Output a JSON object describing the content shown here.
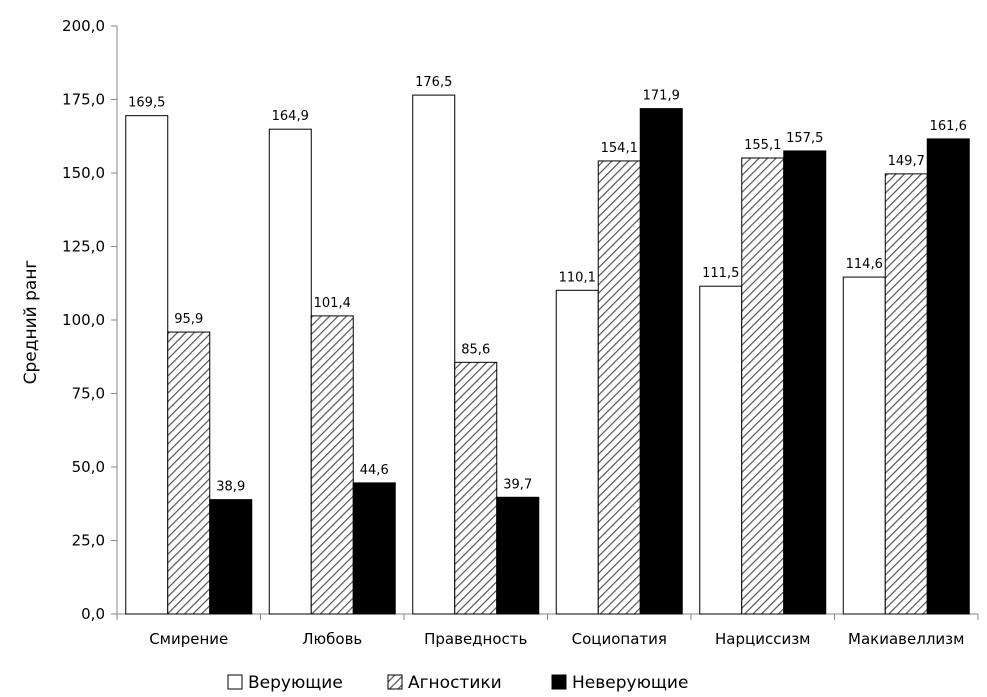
{
  "chart_data": {
    "type": "bar",
    "categories": [
      "Смирение",
      "Любовь",
      "Праведность",
      "Социопатия",
      "Нарциссизм",
      "Макиавеллизм"
    ],
    "series": [
      {
        "name": "Верующие",
        "values": [
          169.5,
          164.9,
          176.5,
          110.1,
          111.5,
          114.6
        ],
        "labels": [
          "169,5",
          "164,9",
          "176,5",
          "110,1",
          "111,5",
          "114,6"
        ],
        "fill": "white"
      },
      {
        "name": "Агностики",
        "values": [
          95.9,
          101.4,
          85.6,
          154.1,
          155.1,
          149.7
        ],
        "labels": [
          "95,9",
          "101,4",
          "85,6",
          "154,1",
          "155,1",
          "149,7"
        ],
        "fill": "hatch"
      },
      {
        "name": "Неверующие",
        "values": [
          38.9,
          44.6,
          39.7,
          171.9,
          157.5,
          161.6
        ],
        "labels": [
          "38,9",
          "44,6",
          "39,7",
          "171,9",
          "157,5",
          "161,6"
        ],
        "fill": "black"
      }
    ],
    "ylabel": "Средний ранг",
    "xlabel": "",
    "ylim": [
      0,
      200
    ],
    "yticks": [
      "0,0",
      "25,0",
      "50,0",
      "75,0",
      "100,0",
      "125,0",
      "150,0",
      "175,0",
      "200,0"
    ],
    "legend_position": "bottom",
    "grid": false
  }
}
